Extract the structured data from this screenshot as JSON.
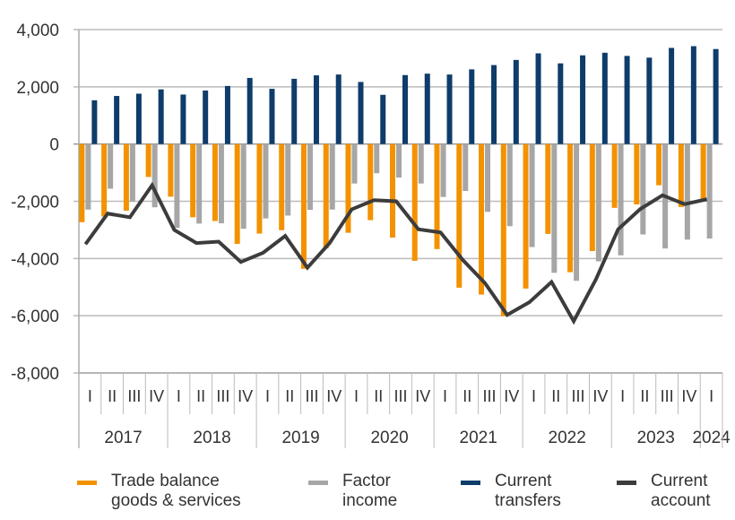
{
  "chart_data": {
    "type": "bar",
    "title": "",
    "xlabel": "",
    "ylabel": "",
    "ylim": [
      -8000,
      4000
    ],
    "yticks": [
      "4,000",
      "2,000",
      "0",
      "-2,000",
      "-4,000",
      "-6,000",
      "-8,000"
    ],
    "ytick_values": [
      4000,
      2000,
      0,
      -2000,
      -4000,
      -6000,
      -8000
    ],
    "grid": true,
    "legend_position": "bottom",
    "quarters": [
      "I",
      "II",
      "III",
      "IV",
      "I",
      "II",
      "III",
      "IV",
      "I",
      "II",
      "III",
      "IV",
      "I",
      "II",
      "III",
      "IV",
      "I",
      "II",
      "III",
      "IV",
      "I",
      "II",
      "III",
      "IV",
      "I",
      "II",
      "III",
      "IV",
      "I"
    ],
    "years": [
      {
        "label": "2017",
        "count": 4
      },
      {
        "label": "2018",
        "count": 4
      },
      {
        "label": "2019",
        "count": 4
      },
      {
        "label": "2020",
        "count": 4
      },
      {
        "label": "2021",
        "count": 4
      },
      {
        "label": "2022",
        "count": 4
      },
      {
        "label": "2023",
        "count": 4
      },
      {
        "label": "2024",
        "count": 1
      }
    ],
    "series": [
      {
        "name": "Trade balance goods & services",
        "legend": "Trade balance\ngoods & services",
        "kind": "bar",
        "color": "#f39200",
        "values": [
          -2730,
          -2530,
          -2330,
          -1150,
          -1840,
          -2560,
          -2690,
          -3490,
          -3130,
          -3010,
          -4360,
          -3650,
          -3100,
          -2660,
          -3270,
          -4080,
          -3670,
          -5020,
          -5260,
          -6010,
          -5050,
          -3140,
          -4480,
          -3740,
          -2230,
          -2110,
          -1440,
          -2200,
          -2000
        ]
      },
      {
        "name": "Factor income",
        "legend": "Factor\nincome",
        "kind": "bar",
        "color": "#a6a6a6",
        "values": [
          -2290,
          -1560,
          -2010,
          -2210,
          -2930,
          -2780,
          -2770,
          -2960,
          -2600,
          -2500,
          -2300,
          -2290,
          -1380,
          -1020,
          -1170,
          -1380,
          -1850,
          -1640,
          -2370,
          -2870,
          -3600,
          -4500,
          -4780,
          -4100,
          -3890,
          -3160,
          -3650,
          -3340,
          -3300
        ]
      },
      {
        "name": "Current transfers",
        "legend": "Current\ntransfers",
        "kind": "bar",
        "color": "#0e3c6b",
        "values": [
          1530,
          1680,
          1760,
          1910,
          1730,
          1870,
          2030,
          2310,
          1930,
          2280,
          2400,
          2430,
          2170,
          1720,
          2410,
          2460,
          2430,
          2610,
          2760,
          2940,
          3170,
          2820,
          3100,
          3190,
          3080,
          3020,
          3360,
          3420,
          3320
        ]
      },
      {
        "name": "Current account",
        "legend": "Current\naccount",
        "kind": "line",
        "color": "#3c3c3c",
        "values": [
          -3500,
          -2430,
          -2560,
          -1440,
          -3000,
          -3460,
          -3410,
          -4120,
          -3800,
          -3210,
          -4320,
          -3460,
          -2280,
          -1960,
          -2000,
          -2980,
          -3090,
          -4050,
          -4860,
          -5970,
          -5530,
          -4820,
          -6190,
          -4730,
          -2980,
          -2270,
          -1790,
          -2100,
          -1930
        ]
      }
    ]
  }
}
